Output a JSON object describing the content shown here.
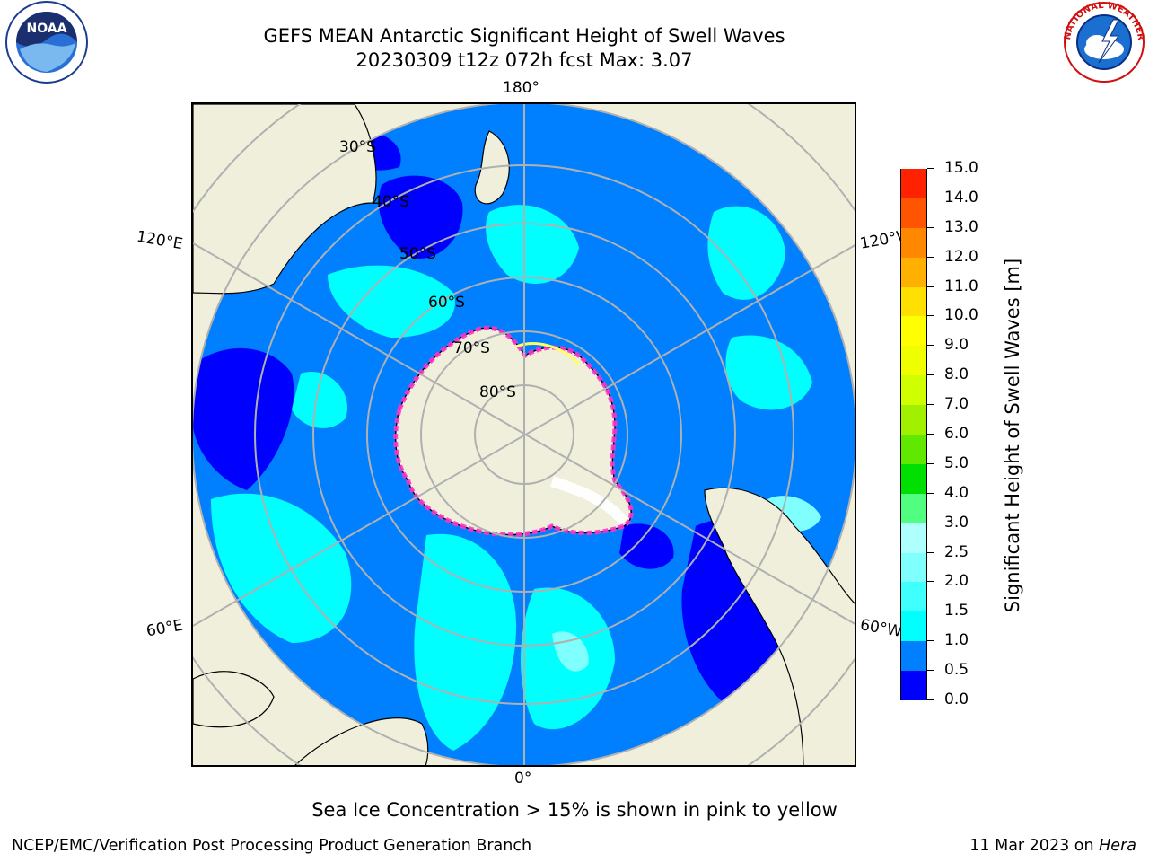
{
  "header": {
    "title_line1": "GEFS MEAN Antarctic Significant Height of Swell Waves",
    "title_line2": "20230309 t12z 072h fcst   Max: 3.07"
  },
  "logos": {
    "noaa": {
      "text": "NOAA",
      "icon": "noaa-logo-icon"
    },
    "nws": {
      "text": "NATIONAL WEATHER SERVICE",
      "icon": "nws-logo-icon"
    }
  },
  "map": {
    "projection": "south-polar-stereographic",
    "longitude_labels": {
      "top": "180°",
      "bottom": "0°",
      "upper_left": "120°E",
      "upper_right": "120°W",
      "lower_left": "60°E",
      "lower_right": "60°W"
    },
    "latitude_labels": [
      "30°S",
      "40°S",
      "50°S",
      "60°S",
      "70°S",
      "80°S"
    ],
    "colors": {
      "land": "#efefdc",
      "ice_edge_start": "#ff33cc",
      "ice_edge_end": "#ffff66",
      "graticule": "#b0b0b0"
    }
  },
  "colorbar": {
    "title": "Significant Height of Swell Waves [m]",
    "tick_labels": [
      "0.0",
      "0.5",
      "1.0",
      "1.5",
      "2.0",
      "2.5",
      "3.0",
      "4.0",
      "5.0",
      "6.0",
      "7.0",
      "8.0",
      "9.0",
      "10.0",
      "11.0",
      "12.0",
      "13.0",
      "14.0",
      "15.0"
    ],
    "colors": [
      "#0000ff",
      "#0080ff",
      "#00ffff",
      "#40ffff",
      "#80ffff",
      "#b0ffff",
      "#50ff80",
      "#00e000",
      "#60e800",
      "#a0f000",
      "#d0ff00",
      "#f0ff00",
      "#ffff00",
      "#ffe000",
      "#ffb000",
      "#ff8800",
      "#ff5500",
      "#ff2200"
    ]
  },
  "chart_data": {
    "type": "heatmap",
    "title": "GEFS MEAN Antarctic Significant Height of Swell Waves",
    "subtitle": "20230309 t12z 072h fcst   Max: 3.07",
    "colorbar_label": "Significant Height of Swell Waves [m]",
    "levels": [
      0.0,
      0.5,
      1.0,
      1.5,
      2.0,
      2.5,
      3.0,
      4.0,
      5.0,
      6.0,
      7.0,
      8.0,
      9.0,
      10.0,
      11.0,
      12.0,
      13.0,
      14.0,
      15.0
    ],
    "max": 3.07,
    "forecast_hour": "072h",
    "cycle": "20230309 t12z"
  },
  "footer": {
    "ice_note": "Sea Ice Concentration > 15% is shown in pink to yellow",
    "credit": "NCEP/EMC/Verification Post Processing Product Generation Branch",
    "date_prefix": "11 Mar 2023 on ",
    "machine": "Hera"
  }
}
